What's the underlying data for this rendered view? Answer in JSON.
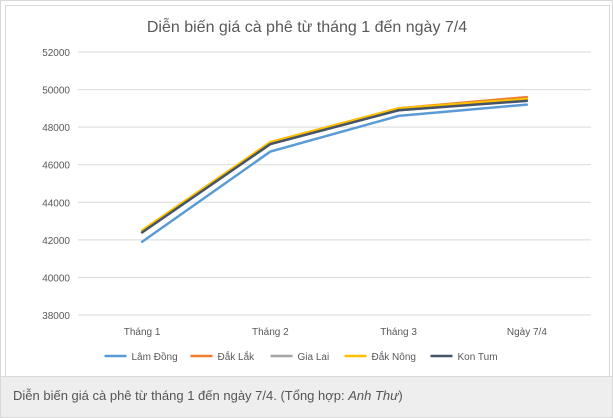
{
  "chart_data": {
    "type": "line",
    "title": "Diễn biến giá cà phê từ tháng 1 đến ngày 7/4",
    "xlabel": "",
    "ylabel": "",
    "categories": [
      "Tháng 1",
      "Tháng 2",
      "Tháng 3",
      "Ngày 7/4"
    ],
    "ylim": [
      38000,
      52000
    ],
    "yticks": [
      38000,
      40000,
      42000,
      44000,
      46000,
      48000,
      50000,
      52000
    ],
    "grid": true,
    "legend_position": "bottom",
    "series": [
      {
        "name": "Lâm Đồng",
        "color": "#5b9bd5",
        "values": [
          41900,
          46700,
          48600,
          49200
        ]
      },
      {
        "name": "Đắk Lắk",
        "color": "#ed7d31",
        "values": [
          42400,
          47200,
          49000,
          49600
        ]
      },
      {
        "name": "Gia Lai",
        "color": "#a5a5a5",
        "values": [
          42400,
          47100,
          48900,
          49500
        ]
      },
      {
        "name": "Đắk Nông",
        "color": "#ffc000",
        "values": [
          42500,
          47200,
          49000,
          49500
        ]
      },
      {
        "name": "Kon Tum",
        "color": "#44546a",
        "values": [
          42400,
          47100,
          48900,
          49400
        ]
      }
    ]
  },
  "caption": {
    "text": "Diễn biến giá cà phê từ tháng 1 đến ngày 7/4. (Tổng hợp: ",
    "author": "Anh Thư",
    "close": ")"
  }
}
